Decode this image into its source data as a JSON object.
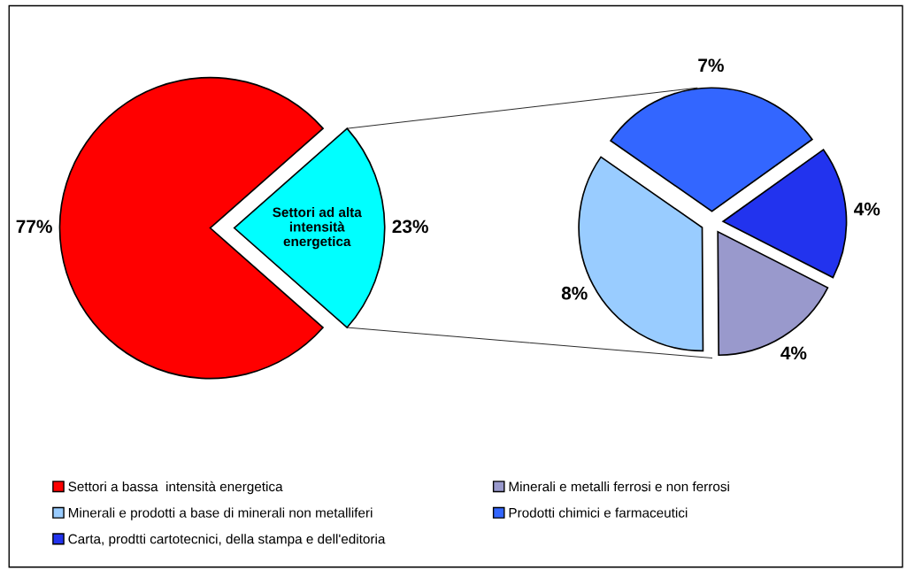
{
  "chart_data": [
    {
      "type": "pie",
      "categories": [
        "Settori a bassa  intensità energetica",
        null
      ],
      "values": [
        77,
        23
      ],
      "colors": [
        "#ff0000",
        "#00ffff"
      ],
      "value_labels": [
        "77%",
        "23%"
      ],
      "annotations": [
        "Settori ad alta\nintensità\nenergetica"
      ],
      "legend": "bottom"
    },
    {
      "type": "pie",
      "categories": [
        "Minerali e metalli ferrosi e non ferrosi",
        "Minerali e prodotti a base di minerali non metalliferi",
        "Prodotti chimici e farmaceutici",
        "Carta, prodtti cartotecnici, della stampa e dell'editoria"
      ],
      "values": [
        4,
        8,
        7,
        4
      ],
      "colors": [
        "#9999cc",
        "#99ccff",
        "#3366ff",
        "#2233ee"
      ],
      "value_labels": [
        "4%",
        "8%",
        "7%",
        "4%"
      ],
      "legend": "bottom"
    }
  ]
}
